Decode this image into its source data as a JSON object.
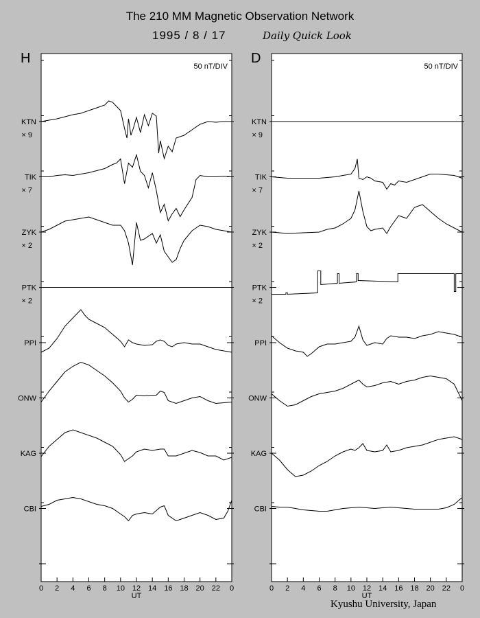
{
  "header": {
    "title": "The 210 MM Magnetic Observation Network",
    "date": "1995  /   8  /  17",
    "subtitle": "Daily Quick Look"
  },
  "footer": {
    "credit": "Kyushu University, Japan"
  },
  "chart_data": [
    {
      "type": "line",
      "panel": "H",
      "scale_label": "50 nT/DIV",
      "xlabel": "UT",
      "x_ticks": [
        "0",
        "2",
        "4",
        "6",
        "8",
        "10",
        "12",
        "14",
        "16",
        "18",
        "20",
        "22",
        "0"
      ],
      "xlim": [
        0,
        24
      ],
      "stations": [
        {
          "name": "KTN",
          "mult": "× 9"
        },
        {
          "name": "TIK",
          "mult": "× 7"
        },
        {
          "name": "ZYK",
          "mult": "× 2"
        },
        {
          "name": "PTK",
          "mult": "× 2"
        },
        {
          "name": "PPI",
          "mult": ""
        },
        {
          "name": "ONW",
          "mult": ""
        },
        {
          "name": "KAG",
          "mult": ""
        },
        {
          "name": "CBI",
          "mult": ""
        }
      ],
      "series": [
        {
          "station": "KTN",
          "x": [
            0,
            1,
            2,
            3,
            4,
            5,
            6,
            7,
            8,
            8.5,
            9,
            9.5,
            10,
            10.5,
            10.8,
            11,
            11.3,
            11.6,
            12,
            12.5,
            13,
            13.5,
            14,
            14.5,
            14.8,
            15,
            15.5,
            16,
            16.5,
            17,
            18,
            19,
            20,
            21,
            22,
            23,
            24
          ],
          "y": [
            0,
            0.1,
            0.2,
            0.35,
            0.5,
            0.6,
            0.8,
            1.0,
            1.2,
            1.5,
            1.4,
            1.1,
            0.8,
            -0.5,
            -1.2,
            0.2,
            -1.0,
            -0.5,
            0.3,
            -0.8,
            0.5,
            -0.3,
            0.6,
            0.4,
            -2.3,
            -1.4,
            -2.7,
            -1.8,
            -2.2,
            -1.2,
            -1.0,
            -0.6,
            -0.2,
            0,
            -0.05,
            0,
            0
          ]
        },
        {
          "station": "TIK",
          "x": [
            0,
            1,
            2,
            3,
            4,
            5,
            6,
            7,
            8,
            9,
            9.5,
            10,
            10.5,
            11,
            11.5,
            12,
            12.5,
            13,
            13.5,
            14,
            14.5,
            15,
            15.5,
            16,
            16.5,
            17,
            17.5,
            18,
            19,
            19.5,
            20,
            21,
            22,
            23,
            24
          ],
          "y": [
            0,
            0,
            0.1,
            0.15,
            0.1,
            0.2,
            0.3,
            0.45,
            0.6,
            0.9,
            1.0,
            1.3,
            -0.5,
            1.0,
            0.7,
            1.6,
            0.4,
            0.1,
            -0.8,
            0.3,
            -1.0,
            -2.6,
            -2.0,
            -3.2,
            -2.7,
            -2.3,
            -2.9,
            -2.4,
            -1.5,
            -0.2,
            0.1,
            0,
            0,
            0.05,
            0
          ]
        },
        {
          "station": "ZYK",
          "x": [
            0,
            1,
            2,
            3,
            4,
            5,
            6,
            7,
            8,
            9,
            10,
            10.5,
            11,
            11.5,
            12,
            12.5,
            13,
            14,
            14.5,
            15,
            15.5,
            16,
            16.5,
            17,
            17.5,
            18,
            19,
            20,
            21,
            22,
            23,
            24
          ],
          "y": [
            0,
            0.2,
            0.5,
            0.8,
            0.9,
            1.0,
            1.1,
            0.9,
            0.7,
            0.5,
            0.5,
            0.1,
            -0.8,
            -2.4,
            0.7,
            -0.6,
            -0.5,
            -0.1,
            -0.8,
            -0.2,
            -1.4,
            -1.8,
            -2.2,
            -2.0,
            -1.2,
            -0.6,
            0.1,
            0.5,
            0.4,
            0.2,
            0.1,
            0
          ]
        },
        {
          "station": "PTK",
          "x": [
            0,
            24
          ],
          "y": [
            0,
            0
          ]
        },
        {
          "station": "PPI",
          "x": [
            0,
            1,
            2,
            3,
            4,
            4.5,
            5,
            5.5,
            6,
            7,
            8,
            9,
            10,
            10.5,
            11,
            11.5,
            12,
            13,
            14,
            14.5,
            15,
            15.5,
            16,
            16.5,
            17,
            18,
            19,
            20,
            21,
            22,
            23,
            24
          ],
          "y": [
            -0.7,
            -0.4,
            0.3,
            1.2,
            1.8,
            2.1,
            2.4,
            2.0,
            1.7,
            1.4,
            1.1,
            0.6,
            0.1,
            -0.3,
            0.2,
            0,
            -0.1,
            -0.2,
            -0.15,
            0.1,
            0.2,
            0.1,
            -0.2,
            -0.3,
            -0.1,
            0,
            -0.1,
            -0.1,
            -0.3,
            -0.5,
            -0.6,
            -0.7
          ]
        },
        {
          "station": "ONW",
          "x": [
            0,
            1,
            2,
            3,
            4,
            5,
            6,
            7,
            8,
            9,
            10,
            10.5,
            11,
            11.5,
            12,
            13,
            14,
            14.5,
            15,
            15.5,
            16,
            17,
            18,
            19,
            20,
            21,
            22,
            23,
            24
          ],
          "y": [
            -0.3,
            0.5,
            1.2,
            1.9,
            2.3,
            2.6,
            2.4,
            2.0,
            1.6,
            1.1,
            0.5,
            0,
            -0.3,
            -0.1,
            0.2,
            0.15,
            0.2,
            0.2,
            0.5,
            0.4,
            -0.2,
            -0.4,
            -0.2,
            0,
            0.1,
            -0.2,
            -0.4,
            -0.35,
            -0.3
          ]
        },
        {
          "station": "KAG",
          "x": [
            0,
            1,
            2,
            3,
            4,
            5,
            6,
            7,
            8,
            9,
            10,
            10.5,
            11,
            11.5,
            12,
            13,
            14,
            15,
            15.5,
            16,
            17,
            18,
            19,
            20,
            21,
            22,
            23,
            24
          ],
          "y": [
            -0.25,
            0.5,
            1.0,
            1.5,
            1.7,
            1.5,
            1.3,
            1.1,
            0.8,
            0.5,
            -0.1,
            -0.6,
            -0.4,
            -0.2,
            0.1,
            0.3,
            0.2,
            0.3,
            0.3,
            -0.2,
            -0.2,
            0,
            0.2,
            0.05,
            -0.2,
            -0.2,
            -0.5,
            -0.3
          ]
        },
        {
          "station": "CBI",
          "x": [
            0,
            1,
            2,
            3,
            4,
            5,
            6,
            7,
            8,
            9,
            10,
            10.5,
            11,
            11.5,
            12,
            13,
            14,
            15,
            15.5,
            16,
            17,
            18,
            19,
            20,
            21,
            22,
            23,
            23.5,
            24
          ],
          "y": [
            0.15,
            0.3,
            0.6,
            0.7,
            0.8,
            0.7,
            0.5,
            0.3,
            0.2,
            0,
            -0.4,
            -0.6,
            -0.9,
            -0.5,
            -0.4,
            -0.3,
            -0.4,
            0.1,
            0.2,
            -0.5,
            -0.9,
            -0.7,
            -0.5,
            -0.3,
            -0.5,
            -0.8,
            -0.7,
            -0.2,
            0.6
          ]
        }
      ]
    },
    {
      "type": "line",
      "panel": "D",
      "scale_label": "50 nT/DIV",
      "xlabel": "UT",
      "x_ticks": [
        "0",
        "2",
        "4",
        "6",
        "8",
        "10",
        "12",
        "14",
        "16",
        "18",
        "20",
        "22",
        "0"
      ],
      "xlim": [
        0,
        24
      ],
      "stations": [
        {
          "name": "KTN",
          "mult": "× 9"
        },
        {
          "name": "TIK",
          "mult": "× 7"
        },
        {
          "name": "ZYK",
          "mult": "× 2"
        },
        {
          "name": "PTK",
          "mult": "× 2"
        },
        {
          "name": "PPI",
          "mult": ""
        },
        {
          "name": "ONW",
          "mult": ""
        },
        {
          "name": "KAG",
          "mult": ""
        },
        {
          "name": "CBI",
          "mult": ""
        }
      ],
      "series": [
        {
          "station": "KTN",
          "x": [
            0,
            24
          ],
          "y": [
            0,
            0
          ]
        },
        {
          "station": "TIK",
          "x": [
            0,
            2,
            4,
            6,
            8,
            9,
            10,
            10.5,
            10.8,
            11,
            11.5,
            12,
            12.5,
            13,
            14,
            14.5,
            15,
            15.5,
            16,
            17,
            18,
            19,
            20,
            21,
            22,
            23,
            24
          ],
          "y": [
            0,
            -0.1,
            -0.1,
            -0.1,
            0,
            0.1,
            0.2,
            0.6,
            1.3,
            -0.1,
            -0.2,
            0,
            -0.1,
            -0.3,
            -0.4,
            -0.9,
            -0.5,
            -0.6,
            -0.3,
            -0.4,
            -0.2,
            0,
            0.2,
            0.2,
            0.15,
            0.1,
            -0.1
          ]
        },
        {
          "station": "ZYK",
          "x": [
            0,
            2,
            4,
            6,
            7,
            8,
            9,
            10,
            10.5,
            11,
            11.5,
            12,
            12.5,
            13,
            14,
            14.5,
            15,
            16,
            17,
            18,
            19,
            20,
            21,
            22,
            23,
            24
          ],
          "y": [
            0,
            -0.1,
            -0.05,
            0,
            0.2,
            0.3,
            0.6,
            1.0,
            1.6,
            3.0,
            1.5,
            0.4,
            0.1,
            0.2,
            0.3,
            -0.1,
            0.4,
            1.2,
            1.0,
            1.8,
            2.0,
            1.5,
            1.0,
            0.6,
            0.3,
            0
          ]
        },
        {
          "station": "PTK",
          "x": [
            0,
            1.8,
            1.8,
            2,
            2,
            5.8,
            5.8,
            6.2,
            6.2,
            8.3,
            8.3,
            8.5,
            8.5,
            10.7,
            10.7,
            10.9,
            10.9,
            15.9,
            15.9,
            23,
            23,
            23.2,
            23.2,
            24
          ],
          "y": [
            -0.5,
            -0.5,
            -0.4,
            -0.4,
            -0.5,
            -0.4,
            1.2,
            1.2,
            0.2,
            0.3,
            1.0,
            1.0,
            0.3,
            0.4,
            1.0,
            1.0,
            0.5,
            0.4,
            1.0,
            1.0,
            -0.3,
            -0.3,
            1.0,
            1.0
          ]
        },
        {
          "station": "PPI",
          "x": [
            0,
            1,
            2,
            3,
            4,
            4.5,
            5,
            6,
            7,
            8,
            9,
            10,
            10.5,
            11,
            11.5,
            12,
            12.5,
            13,
            14,
            14.5,
            15,
            16,
            17,
            18,
            19,
            20,
            21,
            22,
            23,
            24
          ],
          "y": [
            0.5,
            0,
            -0.4,
            -0.6,
            -0.7,
            -1.0,
            -0.8,
            -0.3,
            -0.1,
            -0.1,
            0,
            0.1,
            0.4,
            1.2,
            0.2,
            -0.2,
            -0.1,
            0,
            -0.1,
            0.3,
            0.5,
            0.4,
            0.4,
            0.3,
            0.5,
            0.6,
            0.8,
            0.7,
            0.6,
            0.4
          ]
        },
        {
          "station": "ONW",
          "x": [
            0,
            1,
            2,
            3,
            4,
            5,
            6,
            7,
            8,
            9,
            10,
            11,
            11.5,
            12,
            13,
            14,
            15,
            16,
            17,
            18,
            19,
            20,
            21,
            22,
            23,
            24
          ],
          "y": [
            0.3,
            -0.2,
            -0.6,
            -0.5,
            -0.2,
            0.1,
            0.3,
            0.4,
            0.5,
            0.7,
            1.0,
            1.3,
            1.0,
            0.8,
            0.9,
            1.1,
            1.2,
            1.0,
            1.2,
            1.3,
            1.5,
            1.6,
            1.5,
            1.4,
            1.0,
            -0.2
          ]
        },
        {
          "station": "KAG",
          "x": [
            0,
            1,
            2,
            3,
            4,
            5,
            6,
            7,
            8,
            9,
            10,
            10.5,
            11,
            11.5,
            12,
            13,
            14,
            14.5,
            15,
            16,
            17,
            18,
            19,
            20,
            21,
            22,
            23,
            24
          ],
          "y": [
            0,
            -0.5,
            -1.2,
            -1.7,
            -1.6,
            -1.3,
            -0.9,
            -0.6,
            -0.2,
            0.1,
            0.3,
            0.2,
            0.4,
            0.7,
            0.2,
            0.1,
            0.2,
            0.6,
            0.1,
            0.2,
            0.4,
            0.5,
            0.6,
            0.8,
            1.0,
            1.1,
            1.2,
            1.0
          ]
        },
        {
          "station": "CBI",
          "x": [
            0,
            1,
            2,
            3,
            4,
            5,
            6,
            7,
            8,
            9,
            10,
            11,
            12,
            13,
            14,
            15,
            16,
            17,
            18,
            19,
            20,
            21,
            22,
            23,
            24
          ],
          "y": [
            0.15,
            0.1,
            0.1,
            0,
            -0.1,
            -0.15,
            -0.2,
            -0.2,
            -0.1,
            0,
            0.05,
            0.1,
            0.05,
            0,
            0.05,
            0.1,
            0.05,
            0,
            -0.05,
            -0.05,
            -0.05,
            -0.05,
            0.05,
            0.3,
            0.8
          ]
        }
      ]
    }
  ]
}
